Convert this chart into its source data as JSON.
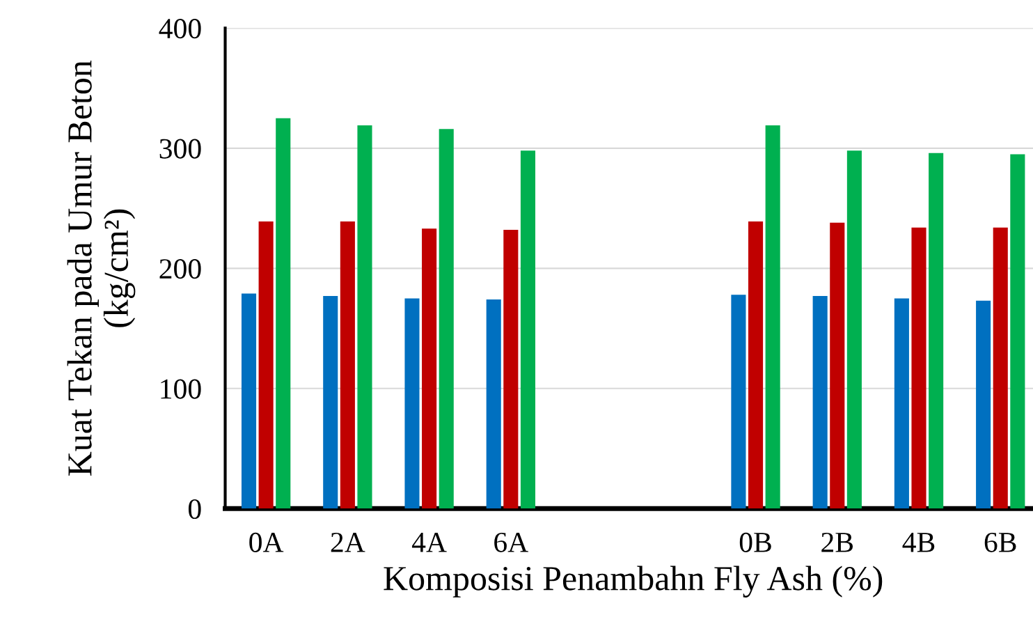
{
  "chart_data": {
    "type": "bar",
    "xlabel": "Komposisi Penambahn Fly Ash (%)",
    "ylabel": "Kuat Tekan pada Umur Beton\n(kg/cm²)",
    "categories": [
      "0A",
      "2A",
      "4A",
      "6A",
      null,
      null,
      "0B",
      "2B",
      "4B",
      "6B"
    ],
    "series": [
      {
        "color": "#0070c0",
        "values": [
          179,
          177,
          175,
          174,
          null,
          null,
          178,
          177,
          175,
          173
        ]
      },
      {
        "color": "#c00000",
        "values": [
          239,
          239,
          233,
          232,
          null,
          null,
          239,
          238,
          234,
          234
        ]
      },
      {
        "color": "#00b050",
        "values": [
          325,
          319,
          316,
          298,
          null,
          null,
          319,
          298,
          296,
          295
        ]
      }
    ],
    "ylim": [
      0,
      400
    ],
    "yticks": [
      0,
      100,
      200,
      300,
      400
    ],
    "grid": "y",
    "legend": false
  }
}
